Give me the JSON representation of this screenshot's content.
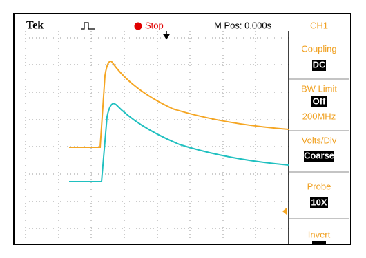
{
  "header": {
    "brand": "Tek",
    "status": "Stop",
    "position": "M Pos: 0.000s",
    "channel": "CH1"
  },
  "menu": [
    {
      "label": "Coupling",
      "value": "DC"
    },
    {
      "label": "BW Limit",
      "value": "Off",
      "extra": "200MHz"
    },
    {
      "label": "Volts/Div",
      "value": "Coarse"
    },
    {
      "label": "Probe",
      "value": "10X"
    },
    {
      "label": "Invert"
    }
  ]
}
